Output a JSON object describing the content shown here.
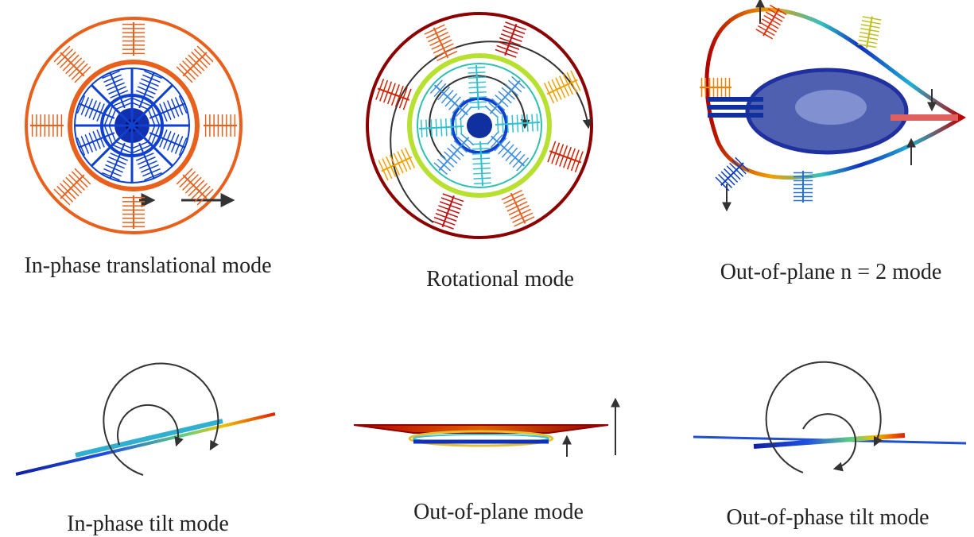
{
  "panels": [
    {
      "caption": "In-phase translational mode"
    },
    {
      "caption": "Rotational mode"
    },
    {
      "caption": "Out-of-plane n = 2 mode"
    },
    {
      "caption": "In-phase tilt mode"
    },
    {
      "caption": "Out-of-plane mode"
    },
    {
      "caption": "Out-of-phase tilt mode"
    }
  ]
}
